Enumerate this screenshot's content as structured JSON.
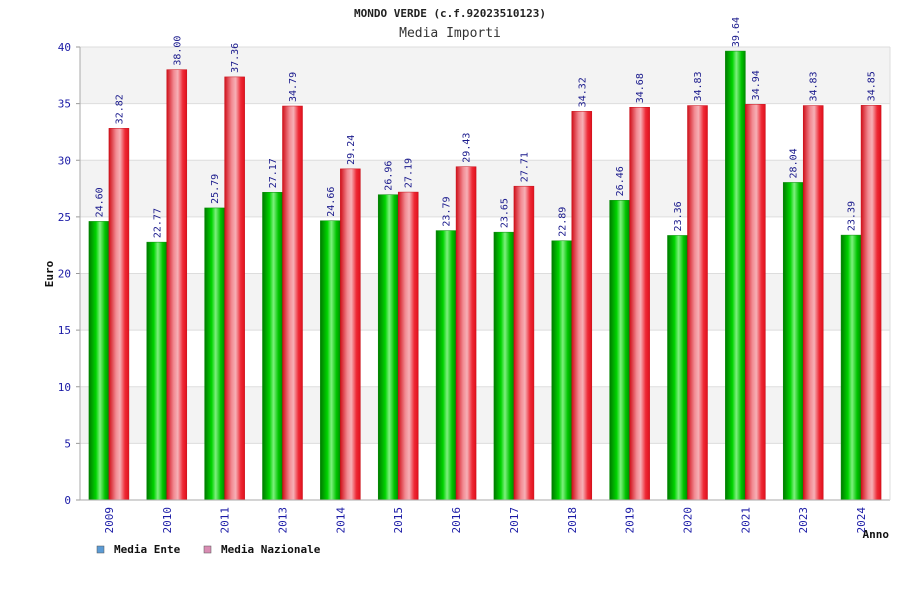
{
  "chart_data": {
    "type": "bar",
    "title": "MONDO VERDE (c.f.92023510123)",
    "subtitle": "Media Importi",
    "ylabel": "Euro",
    "xlabel": "Anno",
    "ylim": [
      0,
      40
    ],
    "yticks": [
      0,
      5,
      10,
      15,
      20,
      25,
      30,
      35,
      40
    ],
    "grid": true,
    "legend_position": "bottom-left",
    "categories": [
      "2009",
      "2010",
      "2011",
      "2013",
      "2014",
      "2015",
      "2016",
      "2017",
      "2018",
      "2019",
      "2020",
      "2021",
      "2023",
      "2024"
    ],
    "series": [
      {
        "name": "Media Ente",
        "color": "#00b400",
        "legend_color": "#5b9bd5",
        "values": [
          24.6,
          22.77,
          25.79,
          27.17,
          24.66,
          26.96,
          23.79,
          23.65,
          22.89,
          26.46,
          23.36,
          39.64,
          28.04,
          23.39
        ],
        "labels": [
          "24.60",
          "22.77",
          "25.79",
          "27.17",
          "24.66",
          "26.96",
          "23.79",
          "23.65",
          "22.89",
          "26.46",
          "23.36",
          "39.64",
          "28.04",
          "23.39"
        ]
      },
      {
        "name": "Media Nazionale",
        "color": "#e8101c",
        "legend_color": "#d98cb3",
        "values": [
          32.82,
          38.0,
          37.36,
          34.79,
          29.24,
          27.19,
          29.43,
          27.71,
          34.32,
          34.68,
          34.83,
          34.94,
          34.83,
          34.85
        ],
        "labels": [
          "32.82",
          "38.00",
          "37.36",
          "34.79",
          "29.24",
          "27.19",
          "29.43",
          "27.71",
          "34.32",
          "34.68",
          "34.83",
          "34.94",
          "34.83",
          "34.85"
        ]
      }
    ]
  }
}
